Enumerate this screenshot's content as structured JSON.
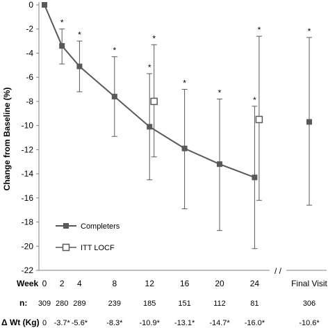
{
  "chart_data": {
    "type": "line",
    "ylabel": "Change from Baseline (%)",
    "ylim": [
      -22,
      0
    ],
    "yticks": [
      0,
      -2,
      -4,
      -6,
      -8,
      -10,
      -12,
      -14,
      -16,
      -18,
      -20,
      -22
    ],
    "xticks": [
      "0",
      "2",
      "4",
      "8",
      "12",
      "16",
      "20",
      "24",
      "Final Visit"
    ],
    "x_numeric": [
      0,
      2,
      4,
      8,
      12,
      16,
      20,
      24
    ],
    "axis_break": "/ /",
    "series": [
      {
        "name": "Completers",
        "marker": "filled-square",
        "x": [
          0,
          2,
          4,
          8,
          12,
          16,
          20,
          24
        ],
        "values": [
          0,
          -3.4,
          -5.1,
          -7.6,
          -10.1,
          -11.9,
          -13.2,
          -14.3
        ],
        "err_upper": [
          0,
          -2.0,
          -3.0,
          -4.3,
          -5.7,
          -7.0,
          -7.8,
          -8.4
        ],
        "err_lower": [
          0,
          -4.9,
          -7.2,
          -10.9,
          -14.5,
          -16.9,
          -18.7,
          -20.2
        ],
        "significant": [
          false,
          true,
          true,
          true,
          true,
          true,
          true,
          true
        ]
      },
      {
        "name": "ITT LOCF",
        "marker": "open-square",
        "x": [
          12,
          24
        ],
        "values": [
          -8.0,
          -9.5
        ],
        "err_upper": [
          -3.3,
          -2.6
        ],
        "err_lower": [
          -12.6,
          -16.2
        ],
        "significant": [
          true,
          true
        ]
      }
    ],
    "final_visit": {
      "value": -9.7,
      "err_upper": -2.7,
      "err_lower": -16.6,
      "significant": true
    },
    "legend_placement": "bottom-left",
    "grid": false
  },
  "table": {
    "week_label": "Week",
    "n_label": "n:",
    "wt_label": "Δ Wt (Kg)",
    "n_values": [
      "309",
      "280",
      "289",
      "239",
      "185",
      "151",
      "112",
      "81",
      "306"
    ],
    "wt_values": [
      "0",
      "-3.7*",
      "-5.6*",
      "-8.3*",
      "-10.9*",
      "-13.1*",
      "-14.7*",
      "-16.0*",
      "-10.6*"
    ]
  },
  "colors": {
    "line": "#595959",
    "axis": "#7f7f7f",
    "text": "#000000"
  }
}
